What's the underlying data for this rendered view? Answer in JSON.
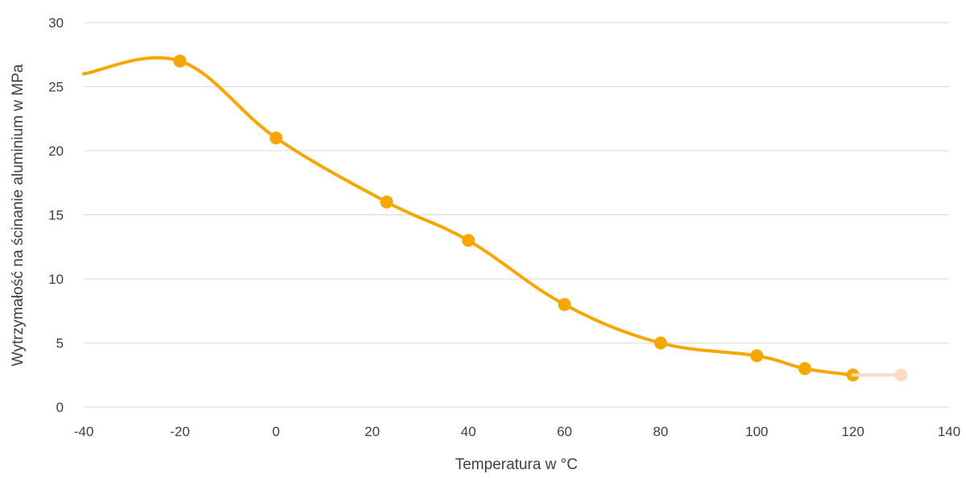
{
  "chart_data": {
    "type": "line",
    "title": "",
    "xlabel": "Temperatura w °C",
    "ylabel": "Wytrzymałość na ścinanie aluminium w MPa",
    "xlim": [
      -40,
      140
    ],
    "ylim": [
      0,
      30
    ],
    "xticks": [
      -40,
      -20,
      0,
      20,
      40,
      60,
      80,
      100,
      120,
      140
    ],
    "yticks": [
      0,
      5,
      10,
      15,
      20,
      25,
      30
    ],
    "xtick_labels": [
      "-40",
      "-20",
      "0",
      "20",
      "40",
      "60",
      "80",
      "100",
      "120",
      "140"
    ],
    "ytick_labels": [
      "0",
      "5",
      "10",
      "15",
      "20",
      "25",
      "30"
    ],
    "grid": "horizontal",
    "series": [
      {
        "color": "#f4a700",
        "smooth": true,
        "x": [
          -40,
          -20,
          0,
          23,
          40,
          60,
          80,
          100,
          110,
          120
        ],
        "y": [
          26,
          27,
          21,
          16,
          13,
          8,
          5,
          4,
          3,
          2.5
        ],
        "markers": [
          false,
          true,
          true,
          true,
          true,
          true,
          true,
          true,
          true,
          true
        ]
      },
      {
        "color": "#f8dcc4",
        "smooth": false,
        "x": [
          120,
          130
        ],
        "y": [
          2.5,
          2.5
        ],
        "markers": [
          false,
          true
        ]
      }
    ]
  }
}
